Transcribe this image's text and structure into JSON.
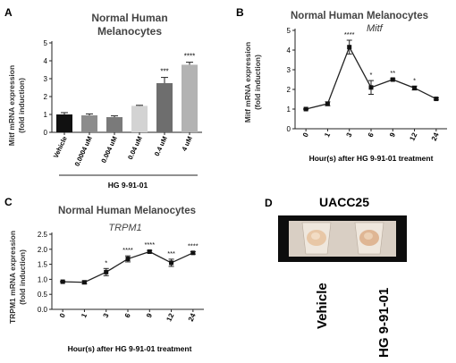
{
  "chart_data": [
    {
      "panel": "A",
      "type": "bar",
      "title": "Normal Human Melanocytes",
      "ylabel": "Mitf mRNA expression (fold induction)",
      "ylabel_lines": [
        "Mitf mRNA expression",
        "(fold induction)"
      ],
      "xlabel": "HG 9-91-01",
      "ylim": [
        0,
        5
      ],
      "yticks": [
        0,
        1,
        2,
        3,
        4,
        5
      ],
      "categories": [
        "Vehicle",
        "0.0004 uM",
        "0.004 uM",
        "0.04 uM",
        "0.4 uM",
        "4 uM"
      ],
      "values": [
        1.0,
        0.95,
        0.85,
        1.48,
        2.75,
        3.78
      ],
      "errors": [
        0.1,
        0.08,
        0.07,
        0.03,
        0.32,
        0.14
      ],
      "significance": [
        "",
        "",
        "",
        "",
        "***",
        "****"
      ],
      "colors": [
        "#111111",
        "#8c8c8c",
        "#7a7a7a",
        "#d3d3d3",
        "#6e6e6e",
        "#b3b3b3"
      ]
    },
    {
      "panel": "B",
      "type": "line",
      "title": "Normal Human Melanocytes",
      "gene_label": "Mitf",
      "ylabel": "Mitf mRNA expression (fold induction)",
      "ylabel_lines": [
        "Mitf mRNA expression",
        "(fold induction)"
      ],
      "xlabel": "Hour(s) after HG 9-91-01 treatment",
      "ylim": [
        0,
        5
      ],
      "yticks": [
        0,
        1,
        2,
        3,
        4,
        5
      ],
      "x": [
        "0",
        "1",
        "3",
        "6",
        "9",
        "12",
        "24"
      ],
      "values": [
        1.0,
        1.27,
        4.15,
        2.1,
        2.5,
        2.07,
        1.52
      ],
      "errors": [
        0.03,
        0.1,
        0.35,
        0.35,
        0.05,
        0.1,
        0.05
      ],
      "significance": [
        "",
        "",
        "****",
        "*",
        "**",
        "*",
        ""
      ]
    },
    {
      "panel": "C",
      "type": "line",
      "title": "Normal Human Melanocytes",
      "gene_label": "TRPM1",
      "ylabel": "TRPM1 mRNA expression (fold induction)",
      "ylabel_lines": [
        "TRPM1 mRNA expression",
        "(fold induction)"
      ],
      "xlabel": "Hour(s) after HG 9-91-01 treatment",
      "ylim": [
        0,
        2.5
      ],
      "yticks": [
        0,
        0.5,
        1.0,
        1.5,
        2.0,
        2.5
      ],
      "x": [
        "0",
        "1",
        "3",
        "6",
        "9",
        "12",
        "24"
      ],
      "values": [
        0.92,
        0.9,
        1.24,
        1.68,
        1.92,
        1.55,
        1.88
      ],
      "errors": [
        0.02,
        0.05,
        0.12,
        0.1,
        0.04,
        0.12,
        0.04
      ],
      "significance": [
        "",
        "",
        "*",
        "****",
        "****",
        "***",
        "****"
      ]
    }
  ],
  "panels": {
    "a": "A",
    "b": "B",
    "c": "C",
    "d": "D"
  },
  "photo_panel": {
    "title": "UACC25",
    "labels": [
      "Vehicle",
      "HG 9-91-01"
    ]
  }
}
